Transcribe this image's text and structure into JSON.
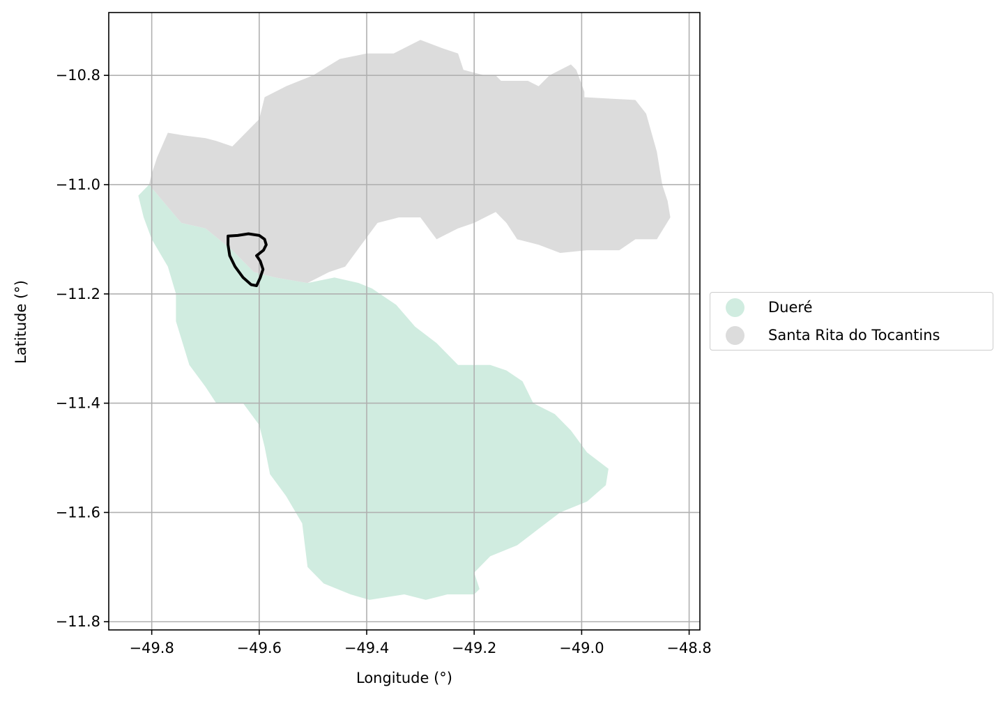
{
  "chart_data": {
    "type": "map",
    "xlabel": "Longitude (°)",
    "ylabel": "Latitude (°)",
    "xlim": [
      -49.88,
      -48.78
    ],
    "ylim": [
      -11.815,
      -10.685
    ],
    "x_ticks": [
      -49.8,
      -49.6,
      -49.4,
      -49.2,
      -49.0,
      -48.8
    ],
    "x_tick_labels": [
      "−49.8",
      "−49.6",
      "−49.4",
      "−49.2",
      "−49.0",
      "−48.8"
    ],
    "y_ticks": [
      -10.8,
      -11.0,
      -11.2,
      -11.4,
      -11.6,
      -11.8
    ],
    "y_tick_labels": [
      "−10.8",
      "−11.0",
      "−11.2",
      "−11.4",
      "−11.6",
      "−11.8"
    ],
    "grid": true,
    "legend_position": "right",
    "regions": [
      {
        "name": "Dueré",
        "color": "#d0ece0",
        "coords": [
          [
            -49.805,
            -11.0
          ],
          [
            -49.745,
            -11.07
          ],
          [
            -49.7,
            -11.08
          ],
          [
            -49.65,
            -11.12
          ],
          [
            -49.61,
            -11.16
          ],
          [
            -49.57,
            -11.17
          ],
          [
            -49.51,
            -11.18
          ],
          [
            -49.46,
            -11.17
          ],
          [
            -49.415,
            -11.18
          ],
          [
            -49.39,
            -11.19
          ],
          [
            -49.345,
            -11.22
          ],
          [
            -49.31,
            -11.26
          ],
          [
            -49.27,
            -11.29
          ],
          [
            -49.23,
            -11.33
          ],
          [
            -49.17,
            -11.33
          ],
          [
            -49.14,
            -11.34
          ],
          [
            -49.11,
            -11.36
          ],
          [
            -49.09,
            -11.4
          ],
          [
            -49.05,
            -11.42
          ],
          [
            -49.02,
            -11.45
          ],
          [
            -48.99,
            -11.49
          ],
          [
            -48.95,
            -11.52
          ],
          [
            -48.955,
            -11.55
          ],
          [
            -48.99,
            -11.58
          ],
          [
            -49.04,
            -11.6
          ],
          [
            -49.08,
            -11.63
          ],
          [
            -49.12,
            -11.66
          ],
          [
            -49.17,
            -11.68
          ],
          [
            -49.2,
            -11.71
          ],
          [
            -49.19,
            -11.74
          ],
          [
            -49.2,
            -11.75
          ],
          [
            -49.25,
            -11.75
          ],
          [
            -49.29,
            -11.76
          ],
          [
            -49.33,
            -11.75
          ],
          [
            -49.395,
            -11.76
          ],
          [
            -49.43,
            -11.75
          ],
          [
            -49.48,
            -11.73
          ],
          [
            -49.51,
            -11.7
          ],
          [
            -49.52,
            -11.62
          ],
          [
            -49.55,
            -11.57
          ],
          [
            -49.58,
            -11.53
          ],
          [
            -49.59,
            -11.48
          ],
          [
            -49.6,
            -11.44
          ],
          [
            -49.63,
            -11.4
          ],
          [
            -49.68,
            -11.4
          ],
          [
            -49.7,
            -11.37
          ],
          [
            -49.73,
            -11.33
          ],
          [
            -49.755,
            -11.25
          ],
          [
            -49.755,
            -11.2
          ],
          [
            -49.77,
            -11.15
          ],
          [
            -49.8,
            -11.1
          ],
          [
            -49.815,
            -11.06
          ],
          [
            -49.825,
            -11.02
          ]
        ]
      },
      {
        "name": "Santa Rita do Tocantins",
        "color": "#dcdcdc",
        "coords": [
          [
            -49.805,
            -11.0
          ],
          [
            -49.8,
            -10.98
          ],
          [
            -49.79,
            -10.95
          ],
          [
            -49.77,
            -10.905
          ],
          [
            -49.74,
            -10.91
          ],
          [
            -49.7,
            -10.915
          ],
          [
            -49.68,
            -10.92
          ],
          [
            -49.65,
            -10.93
          ],
          [
            -49.62,
            -10.9
          ],
          [
            -49.6,
            -10.88
          ],
          [
            -49.59,
            -10.84
          ],
          [
            -49.55,
            -10.82
          ],
          [
            -49.5,
            -10.8
          ],
          [
            -49.45,
            -10.77
          ],
          [
            -49.4,
            -10.76
          ],
          [
            -49.35,
            -10.76
          ],
          [
            -49.3,
            -10.735
          ],
          [
            -49.26,
            -10.75
          ],
          [
            -49.23,
            -10.76
          ],
          [
            -49.22,
            -10.79
          ],
          [
            -49.18,
            -10.8
          ],
          [
            -49.16,
            -10.8
          ],
          [
            -49.15,
            -10.81
          ],
          [
            -49.1,
            -10.81
          ],
          [
            -49.08,
            -10.82
          ],
          [
            -49.06,
            -10.8
          ],
          [
            -49.02,
            -10.78
          ],
          [
            -49.01,
            -10.79
          ],
          [
            -48.995,
            -10.83
          ],
          [
            -48.995,
            -10.84
          ],
          [
            -48.9,
            -10.845
          ],
          [
            -48.88,
            -10.87
          ],
          [
            -48.86,
            -10.94
          ],
          [
            -48.85,
            -11.0
          ],
          [
            -48.84,
            -11.03
          ],
          [
            -48.835,
            -11.06
          ],
          [
            -48.86,
            -11.1
          ],
          [
            -48.9,
            -11.1
          ],
          [
            -48.93,
            -11.12
          ],
          [
            -48.99,
            -11.12
          ],
          [
            -49.04,
            -11.125
          ],
          [
            -49.08,
            -11.11
          ],
          [
            -49.12,
            -11.1
          ],
          [
            -49.14,
            -11.07
          ],
          [
            -49.16,
            -11.05
          ],
          [
            -49.18,
            -11.06
          ],
          [
            -49.2,
            -11.07
          ],
          [
            -49.23,
            -11.08
          ],
          [
            -49.25,
            -11.09
          ],
          [
            -49.27,
            -11.1
          ],
          [
            -49.3,
            -11.06
          ],
          [
            -49.34,
            -11.06
          ],
          [
            -49.38,
            -11.07
          ],
          [
            -49.41,
            -11.11
          ],
          [
            -49.44,
            -11.15
          ],
          [
            -49.47,
            -11.16
          ],
          [
            -49.51,
            -11.18
          ],
          [
            -49.57,
            -11.17
          ],
          [
            -49.61,
            -11.16
          ],
          [
            -49.65,
            -11.12
          ],
          [
            -49.7,
            -11.08
          ],
          [
            -49.745,
            -11.07
          ]
        ]
      }
    ],
    "outline": {
      "color": "#000000",
      "coords": [
        [
          -49.658,
          -11.094
        ],
        [
          -49.64,
          -11.093
        ],
        [
          -49.62,
          -11.09
        ],
        [
          -49.6,
          -11.093
        ],
        [
          -49.59,
          -11.1
        ],
        [
          -49.587,
          -11.11
        ],
        [
          -49.592,
          -11.12
        ],
        [
          -49.605,
          -11.13
        ],
        [
          -49.598,
          -11.14
        ],
        [
          -49.593,
          -11.155
        ],
        [
          -49.598,
          -11.17
        ],
        [
          -49.605,
          -11.185
        ],
        [
          -49.615,
          -11.183
        ],
        [
          -49.63,
          -11.17
        ],
        [
          -49.645,
          -11.15
        ],
        [
          -49.655,
          -11.13
        ],
        [
          -49.658,
          -11.11
        ]
      ]
    },
    "legend": [
      {
        "label": "Dueré",
        "color": "#d0ece0"
      },
      {
        "label": "Santa Rita do Tocantins",
        "color": "#dcdcdc"
      }
    ]
  }
}
